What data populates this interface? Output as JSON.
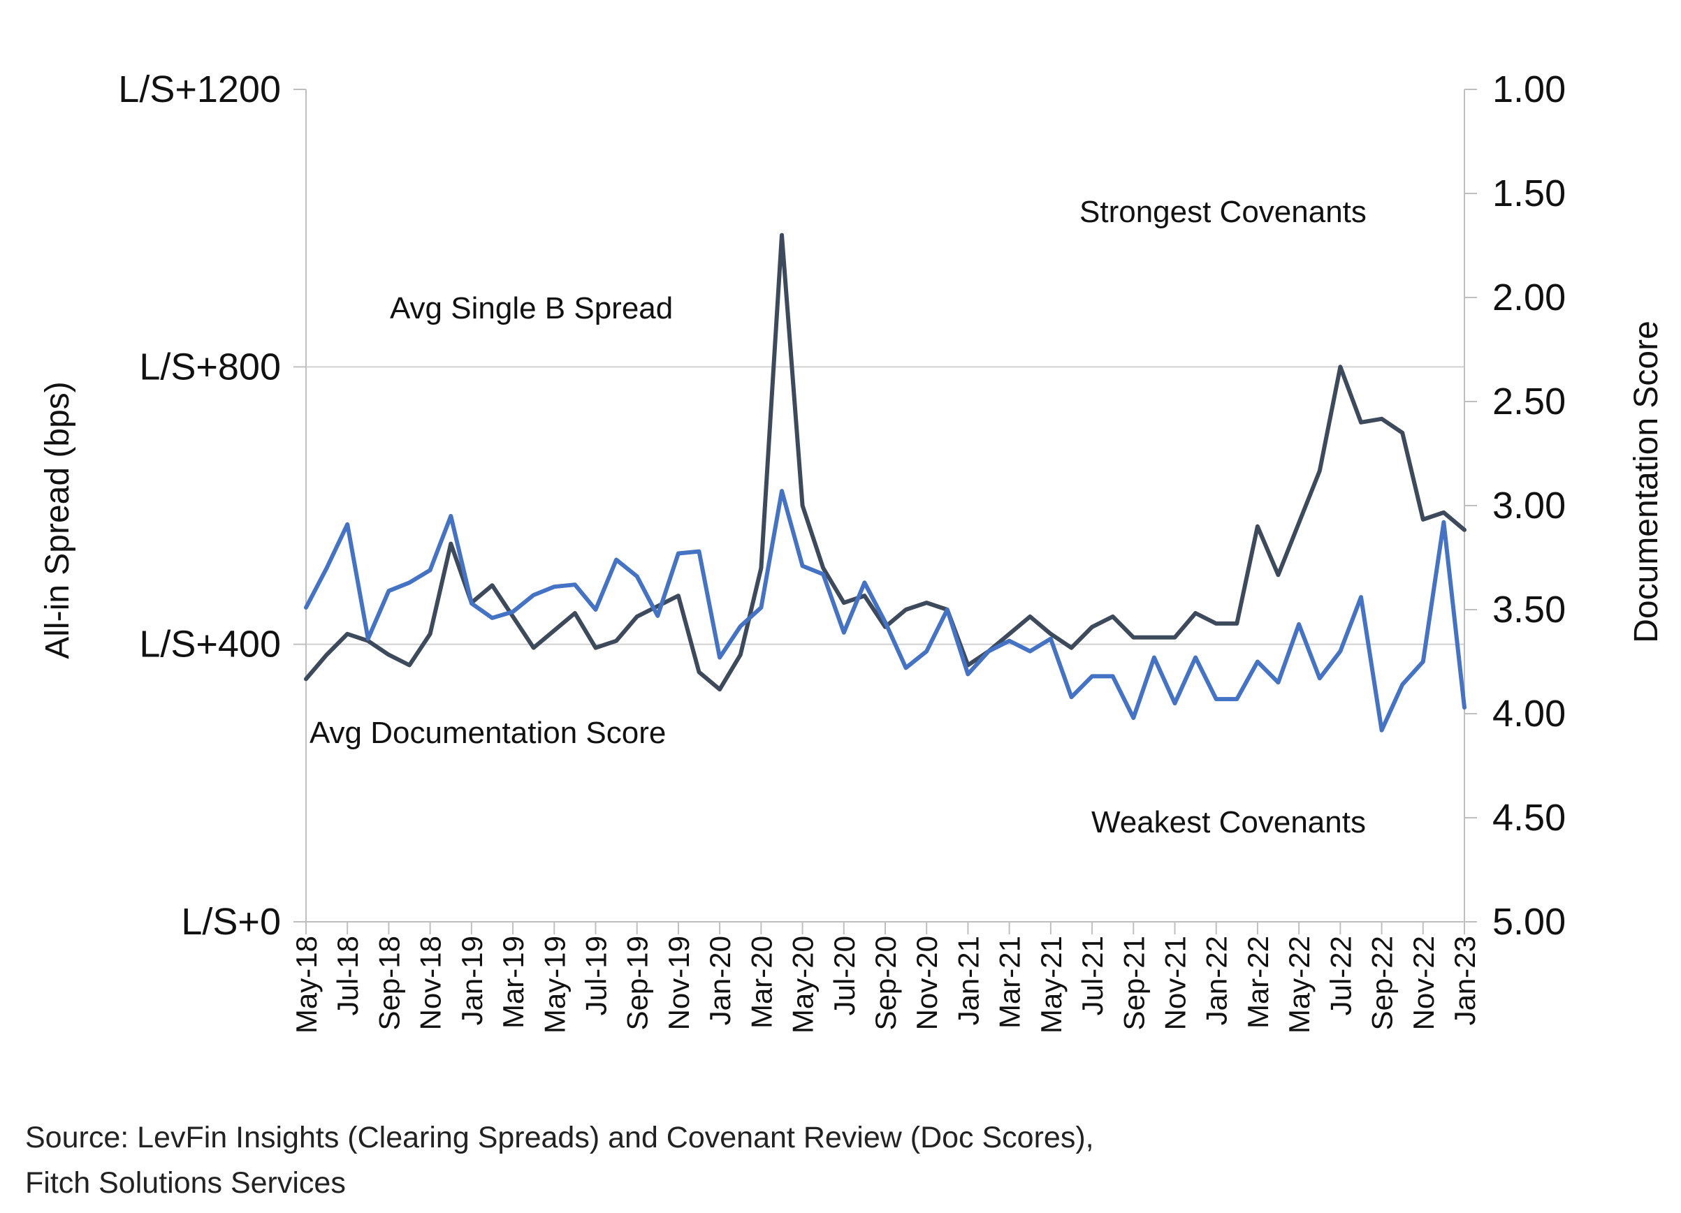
{
  "chart_data": {
    "type": "line",
    "x": [
      "May-18",
      "Jun-18",
      "Jul-18",
      "Aug-18",
      "Sep-18",
      "Oct-18",
      "Nov-18",
      "Dec-18",
      "Jan-19",
      "Feb-19",
      "Mar-19",
      "Apr-19",
      "May-19",
      "Jun-19",
      "Jul-19",
      "Aug-19",
      "Sep-19",
      "Oct-19",
      "Nov-19",
      "Dec-19",
      "Jan-20",
      "Feb-20",
      "Mar-20",
      "Apr-20",
      "May-20",
      "Jun-20",
      "Jul-20",
      "Aug-20",
      "Sep-20",
      "Oct-20",
      "Nov-20",
      "Dec-20",
      "Jan-21",
      "Feb-21",
      "Mar-21",
      "Apr-21",
      "May-21",
      "Jun-21",
      "Jul-21",
      "Aug-21",
      "Sep-21",
      "Oct-21",
      "Nov-21",
      "Dec-21",
      "Jan-22",
      "Feb-22",
      "Mar-22",
      "Apr-22",
      "May-22",
      "Jun-22",
      "Jul-22",
      "Aug-22",
      "Sep-22",
      "Oct-22",
      "Nov-22",
      "Dec-22",
      "Jan-23"
    ],
    "xticks": [
      "May-18",
      "Jul-18",
      "Sep-18",
      "Nov-18",
      "Jan-19",
      "Mar-19",
      "May-19",
      "Jul-19",
      "Sep-19",
      "Nov-19",
      "Jan-20",
      "Mar-20",
      "May-20",
      "Jul-20",
      "Sep-20",
      "Nov-20",
      "Jan-21",
      "Mar-21",
      "May-21",
      "Jul-21",
      "Sep-21",
      "Nov-21",
      "Jan-22",
      "Mar-22",
      "May-22",
      "Jul-22",
      "Sep-22",
      "Nov-22",
      "Jan-23"
    ],
    "series": [
      {
        "name": "Avg Single B Spread",
        "axis": "left",
        "color": "#3d4a5c",
        "values": [
          350,
          385,
          415,
          405,
          385,
          370,
          415,
          545,
          460,
          485,
          440,
          395,
          420,
          445,
          395,
          405,
          440,
          455,
          470,
          360,
          335,
          385,
          510,
          990,
          600,
          510,
          460,
          470,
          425,
          450,
          460,
          450,
          370,
          390,
          415,
          440,
          415,
          395,
          425,
          440,
          410,
          410,
          410,
          445,
          430,
          430,
          570,
          500,
          575,
          650,
          800,
          720,
          725,
          705,
          580,
          590,
          565
        ]
      },
      {
        "name": "Avg Documentation Score",
        "axis": "right",
        "color": "#4472c4",
        "values": [
          3.49,
          3.3,
          3.09,
          3.64,
          3.41,
          3.37,
          3.31,
          3.05,
          3.47,
          3.54,
          3.51,
          3.43,
          3.39,
          3.38,
          3.5,
          3.26,
          3.34,
          3.53,
          3.23,
          3.22,
          3.73,
          3.58,
          3.49,
          2.93,
          3.29,
          3.33,
          3.61,
          3.37,
          3.56,
          3.78,
          3.7,
          3.5,
          3.81,
          3.7,
          3.65,
          3.7,
          3.64,
          3.92,
          3.82,
          3.82,
          4.02,
          3.73,
          3.95,
          3.73,
          3.93,
          3.93,
          3.75,
          3.85,
          3.57,
          3.83,
          3.7,
          3.44,
          4.08,
          3.86,
          3.75,
          3.08,
          3.97
        ]
      }
    ],
    "yaxis_left": {
      "label": "All-in Spread (bps)",
      "ylim": [
        0,
        1200
      ],
      "ticks": [
        1200,
        800,
        400,
        0
      ],
      "tick_labels": [
        "L/S+1200",
        "L/S+800",
        "L/S+400",
        "L/S+0"
      ]
    },
    "yaxis_right": {
      "label": "Documentation Score",
      "ylim": [
        1.0,
        5.0
      ],
      "inverted": true,
      "tick_labels": [
        "1.00",
        "1.50",
        "2.00",
        "2.50",
        "3.00",
        "3.50",
        "4.00",
        "4.50",
        "5.00"
      ]
    },
    "gridlines": [
      800,
      400
    ],
    "annotations": {
      "spread": "Avg Single B Spread",
      "doc_score": "Avg Documentation Score",
      "strongest": "Strongest Covenants",
      "weakest": "Weakest Covenants"
    }
  },
  "source": {
    "line1": "Source: LevFin Insights (Clearing Spreads) and Covenant Review (Doc Scores),",
    "line2": "Fitch Solutions Services"
  }
}
